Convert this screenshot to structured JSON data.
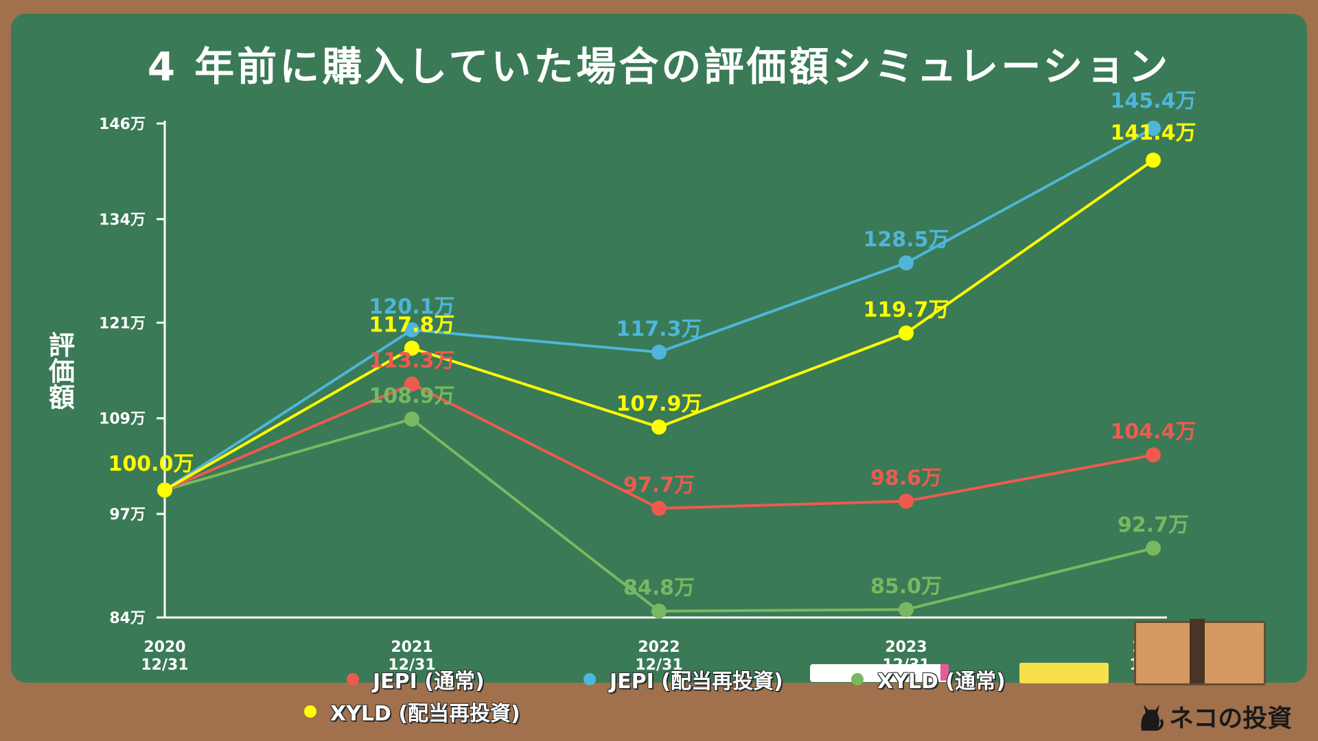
{
  "title": "4 年前に購入していた場合の評価額シミュレーション",
  "ylabel": "評価額",
  "brand": "ネコの投資",
  "chart_data": {
    "type": "line",
    "title": "4 年前に購入していた場合の評価額シミュレーション",
    "ylabel": "評価額",
    "xlabel": "",
    "categories": [
      [
        "2020",
        "12/31"
      ],
      [
        "2021",
        "12/31"
      ],
      [
        "2022",
        "12/31"
      ],
      [
        "2023",
        "12/31"
      ],
      [
        "2024",
        "12/20"
      ]
    ],
    "ylim": [
      84,
      146
    ],
    "yticks": [
      84,
      97,
      109,
      121,
      134,
      146
    ],
    "ytick_labels": [
      "84万",
      "97万",
      "109万",
      "121万",
      "134万",
      "146万"
    ],
    "grid": false,
    "legend_position": "bottom",
    "series": [
      {
        "name": "JEPI (通常)",
        "color": "#ef5a4f",
        "values": [
          100.0,
          113.3,
          97.7,
          98.6,
          104.4
        ],
        "labels": [
          "",
          "113.3万",
          "97.7万",
          "98.6万",
          "104.4万"
        ]
      },
      {
        "name": "JEPI (配当再投資)",
        "color": "#4fb6d9",
        "values": [
          100.0,
          120.1,
          117.3,
          128.5,
          145.4
        ],
        "labels": [
          "",
          "120.1万",
          "117.3万",
          "128.5万",
          "145.4万"
        ]
      },
      {
        "name": "XYLD (通常)",
        "color": "#79b861",
        "values": [
          100.0,
          108.9,
          84.8,
          85.0,
          92.7
        ],
        "labels": [
          "",
          "108.9万",
          "84.8万",
          "85.0万",
          "92.7万"
        ]
      },
      {
        "name": "XYLD (配当再投資)",
        "color": "#ffff00",
        "values": [
          100.0,
          117.8,
          107.9,
          119.7,
          141.4
        ],
        "labels": [
          "100.0万",
          "117.8万",
          "107.9万",
          "119.7万",
          "141.4万"
        ]
      }
    ]
  }
}
